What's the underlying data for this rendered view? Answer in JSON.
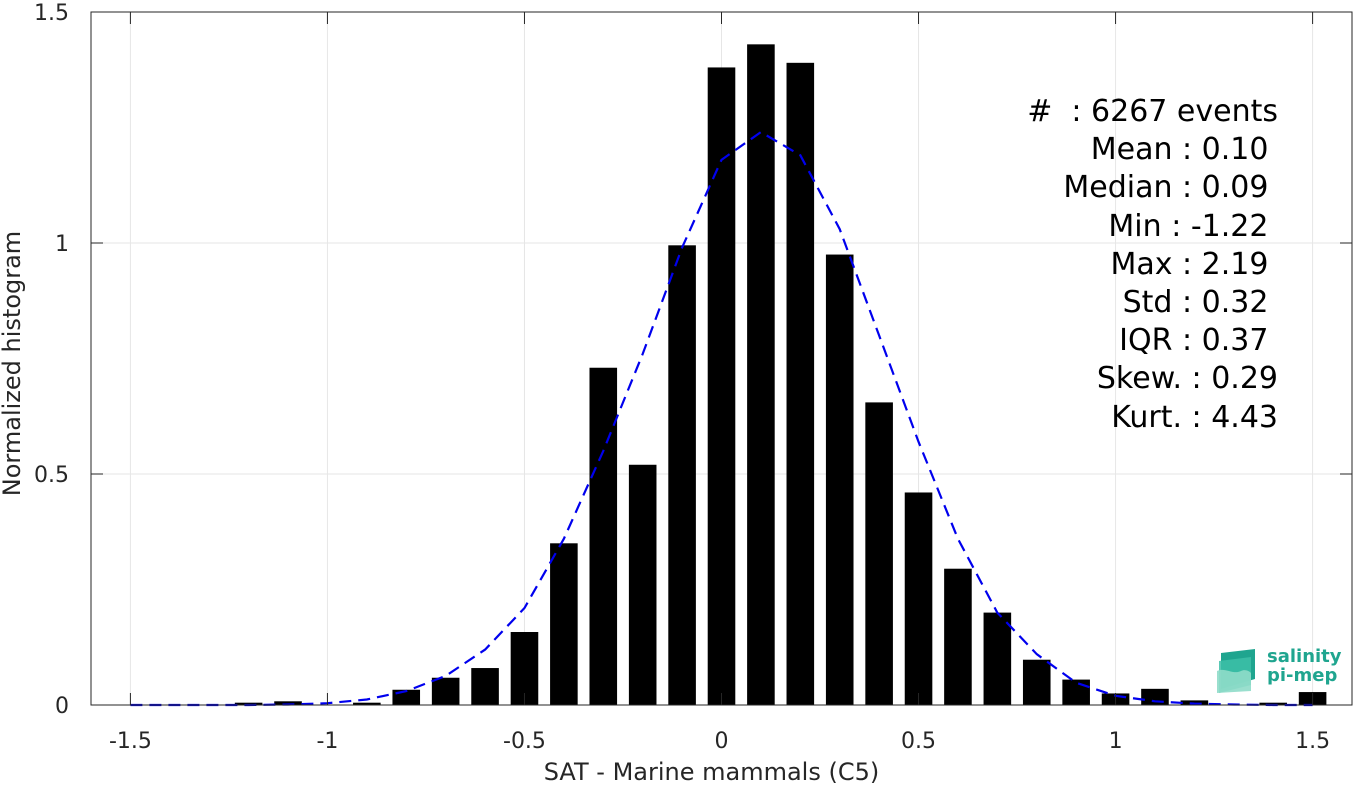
{
  "chart_data": {
    "type": "bar",
    "xlabel": "SAT - Marine mammals (C5)",
    "ylabel": "Normalized histogram",
    "xlim": [
      -1.6,
      1.6
    ],
    "ylim": [
      0,
      1.5
    ],
    "xticks": [
      -1.5,
      -1,
      -0.5,
      0,
      0.5,
      1,
      1.5
    ],
    "yticks": [
      0,
      0.5,
      1,
      1.5
    ],
    "xtick_labels": [
      "-1.5",
      "-1",
      "-0.5",
      "0",
      "0.5",
      "1",
      "1.5"
    ],
    "ytick_labels": [
      "0",
      "0.5",
      "1",
      "1.5"
    ],
    "grid": true,
    "bar_color": "#000000",
    "bin_centers": [
      -1.5,
      -1.4,
      -1.3,
      -1.2,
      -1.1,
      -1.0,
      -0.9,
      -0.8,
      -0.7,
      -0.6,
      -0.5,
      -0.4,
      -0.3,
      -0.2,
      -0.1,
      0.0,
      0.1,
      0.2,
      0.3,
      0.4,
      0.5,
      0.6,
      0.7,
      0.8,
      0.9,
      1.0,
      1.1,
      1.2,
      1.3,
      1.4,
      1.5
    ],
    "values": [
      0.0,
      0.0,
      0.0,
      0.005,
      0.008,
      0.0,
      0.005,
      0.033,
      0.059,
      0.08,
      0.158,
      0.35,
      0.73,
      0.52,
      0.995,
      1.38,
      1.43,
      1.39,
      0.975,
      0.655,
      0.46,
      0.295,
      0.2,
      0.098,
      0.055,
      0.025,
      0.035,
      0.01,
      0.0,
      0.005,
      0.028
    ],
    "fit_curve": {
      "color": "#0000ee",
      "style": "dashed",
      "x": [
        -1.5,
        -1.4,
        -1.3,
        -1.2,
        -1.1,
        -1.0,
        -0.9,
        -0.8,
        -0.7,
        -0.6,
        -0.5,
        -0.4,
        -0.3,
        -0.2,
        -0.1,
        0.0,
        0.1,
        0.2,
        0.3,
        0.4,
        0.5,
        0.6,
        0.7,
        0.8,
        0.9,
        1.0,
        1.1,
        1.2,
        1.3,
        1.4,
        1.5
      ],
      "y": [
        0.0,
        0.0,
        0.0,
        0.0,
        0.001,
        0.004,
        0.012,
        0.03,
        0.063,
        0.12,
        0.21,
        0.36,
        0.55,
        0.76,
        0.99,
        1.18,
        1.24,
        1.19,
        1.03,
        0.8,
        0.57,
        0.36,
        0.2,
        0.11,
        0.048,
        0.02,
        0.008,
        0.003,
        0.001,
        0.0,
        0.0
      ]
    }
  },
  "stats": [
    "#  : 6267 events",
    "Mean : 0.10 ",
    "Median : 0.09 ",
    "Min : -1.22 ",
    "Max : 2.19 ",
    "Std : 0.32 ",
    "IQR : 0.37 ",
    "Skew. : 0.29",
    "Kurt. : 4.43"
  ],
  "logo": {
    "line1": "salinity",
    "line2": "pi-mep",
    "color": "#1fa58f"
  }
}
